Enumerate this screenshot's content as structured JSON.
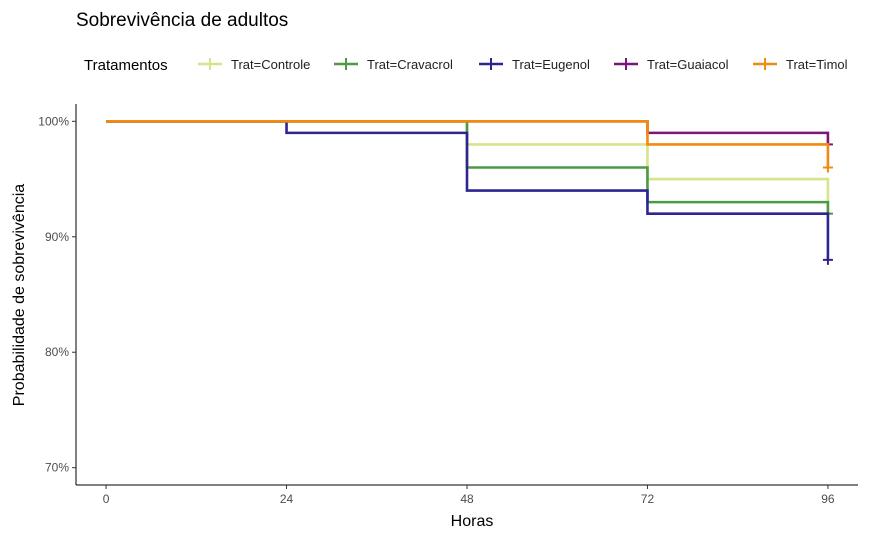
{
  "chart_data": {
    "type": "line",
    "title": "Sobrevivência de adultos",
    "xlabel": "Horas",
    "ylabel": "Probabilidade de sobrevivência",
    "xlim": [
      -4,
      100
    ],
    "ylim": [
      68.5,
      101.5
    ],
    "x_ticks": [
      0,
      24,
      48,
      72,
      96
    ],
    "y_ticks": [
      70,
      80,
      90,
      100
    ],
    "y_tick_labels": [
      "70%",
      "80%",
      "90%",
      "100%"
    ],
    "legend_title": "Tratamentos",
    "legend_position": "top",
    "grid": false,
    "step": true,
    "series": [
      {
        "name": "Trat=Controle",
        "color": "#d4e58d",
        "x": [
          0,
          48,
          72,
          96
        ],
        "y": [
          100,
          98,
          95,
          92
        ],
        "censor": {
          "x": 96,
          "y": 92
        }
      },
      {
        "name": "Trat=Cravacrol",
        "color": "#4a9b45",
        "x": [
          0,
          48,
          72,
          96
        ],
        "y": [
          100,
          96,
          93,
          92
        ],
        "censor": {
          "x": 96,
          "y": 92
        }
      },
      {
        "name": "Trat=Eugenol",
        "color": "#2e2592",
        "x": [
          0,
          24,
          48,
          72,
          96
        ],
        "y": [
          100,
          99,
          94,
          92,
          88
        ],
        "censor": {
          "x": 96,
          "y": 88
        }
      },
      {
        "name": "Trat=Guaiacol",
        "color": "#7d147a",
        "x": [
          0,
          72,
          96
        ],
        "y": [
          100,
          99,
          98
        ],
        "censor": {
          "x": 96,
          "y": 98
        }
      },
      {
        "name": "Trat=Timol",
        "color": "#f28a10",
        "x": [
          0,
          72,
          96
        ],
        "y": [
          100,
          98,
          96
        ],
        "censor": {
          "x": 96,
          "y": 96
        }
      }
    ]
  }
}
